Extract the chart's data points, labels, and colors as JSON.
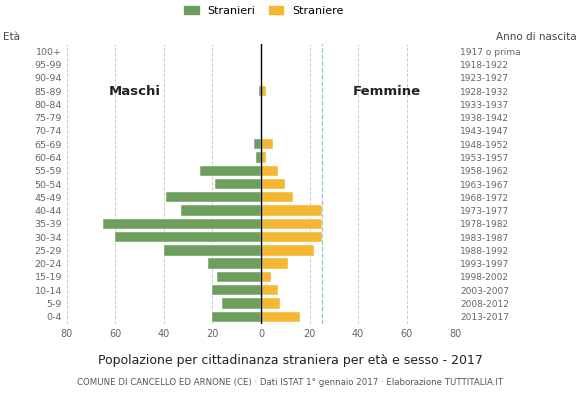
{
  "age_groups": [
    "0-4",
    "5-9",
    "10-14",
    "15-19",
    "20-24",
    "25-29",
    "30-34",
    "35-39",
    "40-44",
    "45-49",
    "50-54",
    "55-59",
    "60-64",
    "65-69",
    "70-74",
    "75-79",
    "80-84",
    "85-89",
    "90-94",
    "95-99",
    "100+"
  ],
  "birth_years": [
    "2013-2017",
    "2008-2012",
    "2003-2007",
    "1998-2002",
    "1993-1997",
    "1988-1992",
    "1983-1987",
    "1978-1982",
    "1973-1977",
    "1968-1972",
    "1963-1967",
    "1958-1962",
    "1953-1957",
    "1948-1952",
    "1943-1947",
    "1938-1942",
    "1933-1937",
    "1928-1932",
    "1923-1927",
    "1918-1922",
    "1917 o prima"
  ],
  "males": [
    20,
    16,
    20,
    18,
    22,
    40,
    60,
    65,
    33,
    39,
    19,
    25,
    2,
    3,
    0,
    0,
    0,
    1,
    0,
    0,
    0
  ],
  "females": [
    16,
    8,
    7,
    4,
    11,
    22,
    25,
    25,
    25,
    13,
    10,
    7,
    2,
    5,
    0,
    0,
    0,
    2,
    0,
    0,
    0
  ],
  "male_color": "#6e9e5e",
  "female_color": "#f5b731",
  "dashed_line_color": "#7ecece",
  "title": "Popolazione per cittadinanza straniera per età e sesso - 2017",
  "subtitle": "COMUNE DI CANCELLO ED ARNONE (CE) · Dati ISTAT 1° gennaio 2017 · Elaborazione TUTTITALIA.IT",
  "legend_male": "Stranieri",
  "legend_female": "Straniere",
  "eta_label": "Età",
  "anno_label": "Anno di nascita",
  "label_maschi": "Maschi",
  "label_femmine": "Femmine",
  "xlim": 80,
  "background_color": "#ffffff",
  "grid_color": "#cccccc"
}
